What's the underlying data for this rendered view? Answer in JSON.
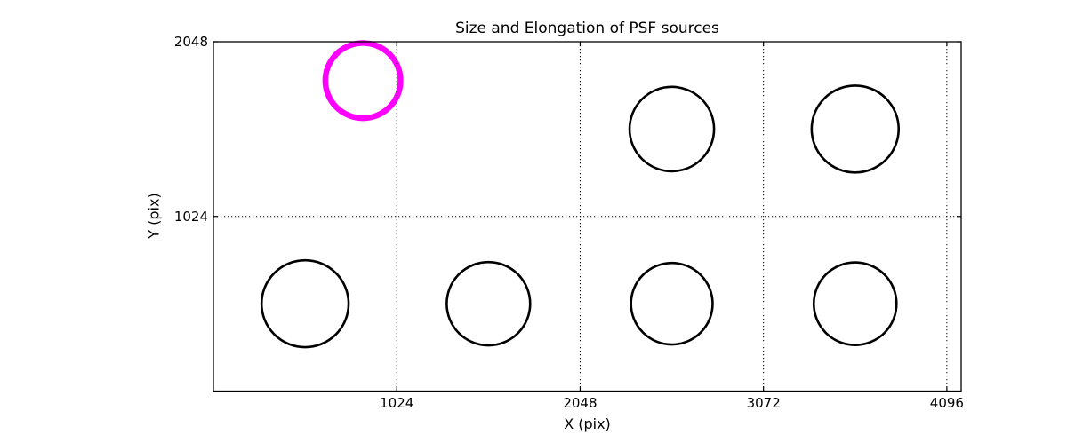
{
  "chart_data": {
    "type": "scatter",
    "title": "Size and Elongation of PSF sources",
    "xlabel": "X (pix)",
    "ylabel": "Y (pix)",
    "xlim": [
      0,
      4176
    ],
    "ylim": [
      0,
      2048
    ],
    "xticks": [
      1024,
      2048,
      3072,
      4096
    ],
    "yticks": [
      1024,
      2048
    ],
    "grid": true,
    "grid_style": "dotted",
    "grid_color": "#000000",
    "background_color": "#ffffff",
    "spine_color": "#000000",
    "highlight_color": "#FF00FF",
    "source_color": "#000000",
    "sources": [
      {
        "x": 835,
        "y": 1820,
        "radius": 210,
        "color": "#FF00FF",
        "line_width": 6.5,
        "highlighted": true
      },
      {
        "x": 2560,
        "y": 1536,
        "radius": 236,
        "color": "#000000",
        "line_width": 2.6,
        "highlighted": false
      },
      {
        "x": 3584,
        "y": 1536,
        "radius": 243,
        "color": "#000000",
        "line_width": 2.6,
        "highlighted": false
      },
      {
        "x": 512,
        "y": 512,
        "radius": 243,
        "color": "#000000",
        "line_width": 2.6,
        "highlighted": false
      },
      {
        "x": 1536,
        "y": 512,
        "radius": 233,
        "color": "#000000",
        "line_width": 2.6,
        "highlighted": false
      },
      {
        "x": 2560,
        "y": 512,
        "radius": 228,
        "color": "#000000",
        "line_width": 2.6,
        "highlighted": false
      },
      {
        "x": 3584,
        "y": 512,
        "radius": 231,
        "color": "#000000",
        "line_width": 2.6,
        "highlighted": false
      }
    ]
  }
}
